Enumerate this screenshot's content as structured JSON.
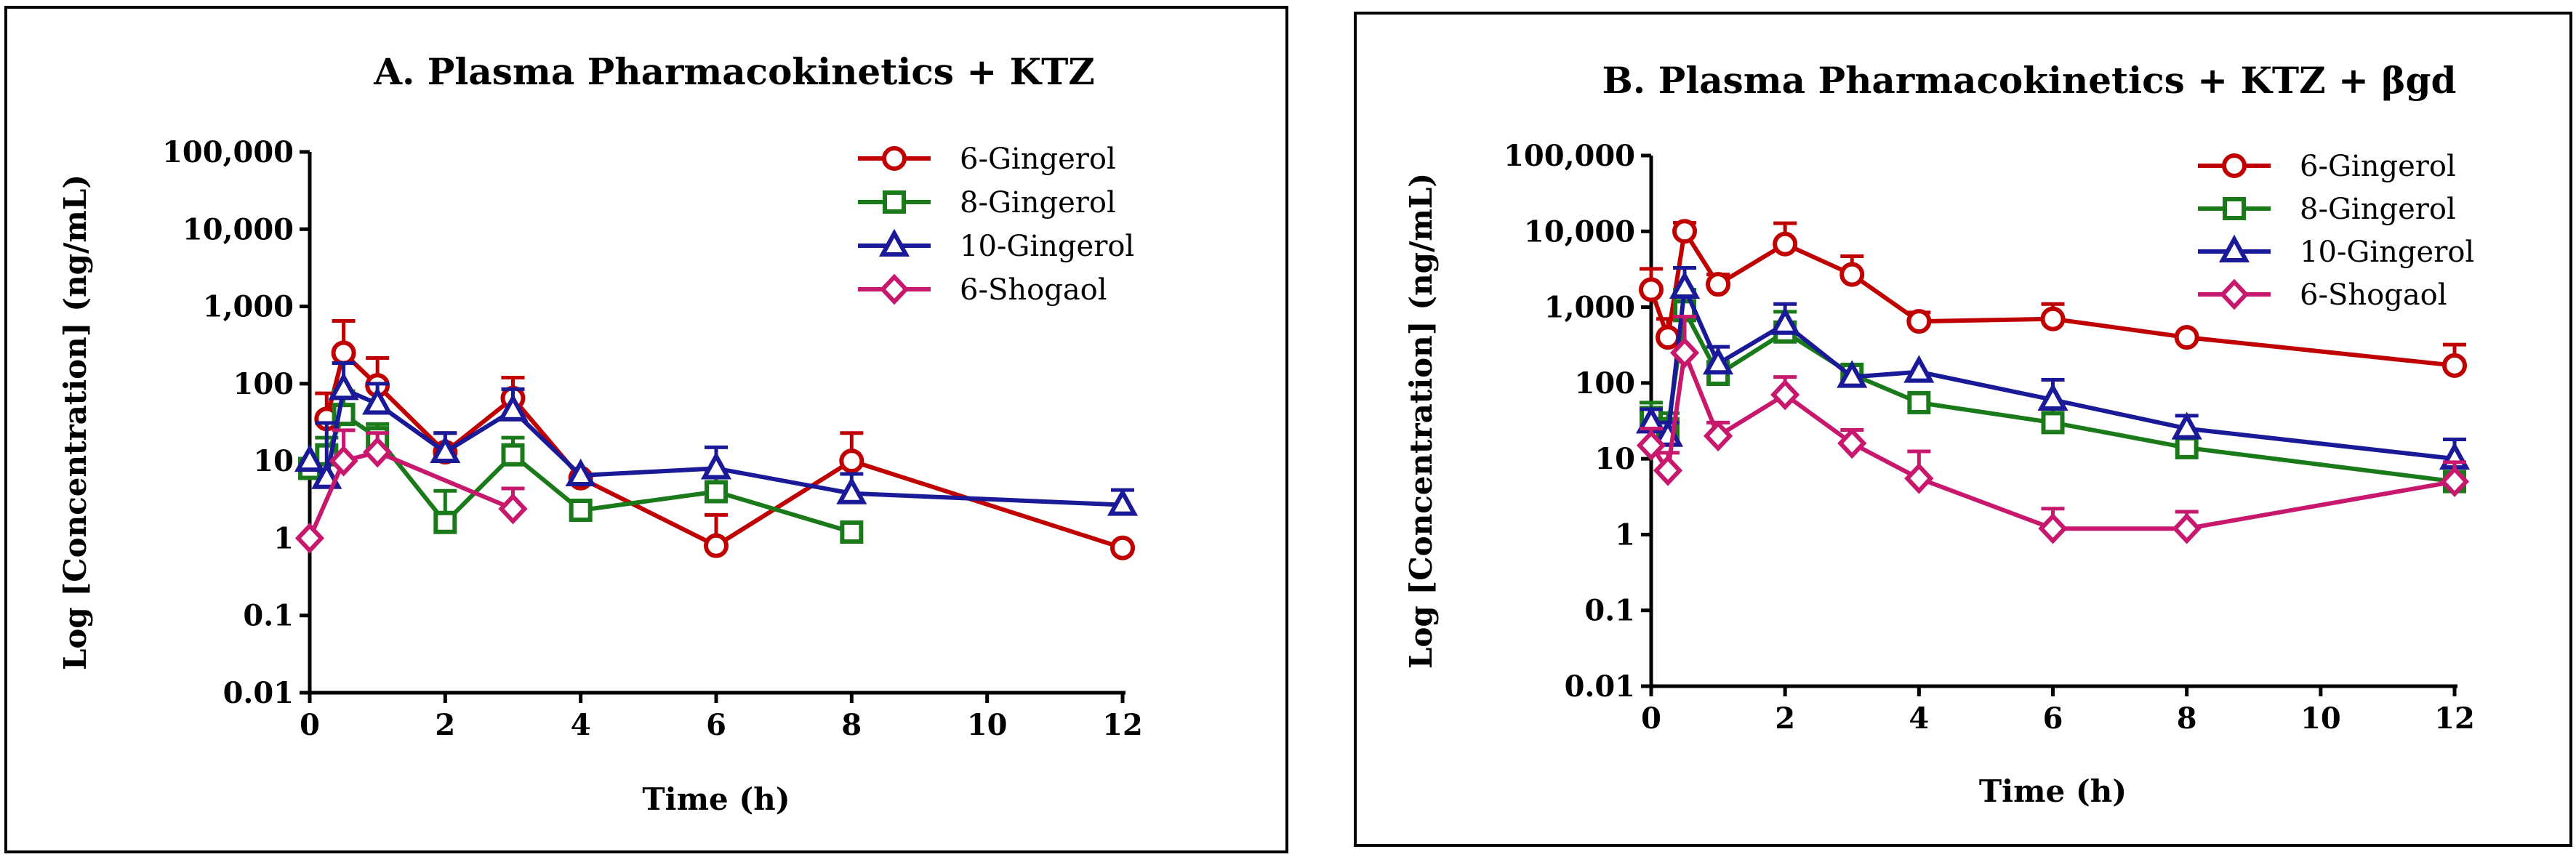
{
  "chart_data": [
    {
      "type": "line",
      "title": "A. Plasma Pharmacokinetics + KTZ",
      "xlabel": "Time (h)",
      "ylabel": "Log [Concentration] (ng/mL)",
      "yscale": "log",
      "xlim": [
        0,
        12
      ],
      "ylim": [
        0.01,
        100000
      ],
      "xticks": [
        0,
        2,
        4,
        6,
        8,
        10,
        12
      ],
      "yticks": [
        0.01,
        0.1,
        1,
        10,
        100,
        1000,
        10000,
        100000
      ],
      "ytick_labels": [
        "0.01",
        "0.1",
        "1",
        "10",
        "100",
        "1,000",
        "10,000",
        "100,000"
      ],
      "legend_position": "top-right",
      "series": [
        {
          "name": "6-Gingerol",
          "color": "#c00000",
          "marker": "circle",
          "x": [
            0.25,
            0.5,
            1,
            2,
            3,
            4,
            6,
            8,
            12
          ],
          "y": [
            35,
            250,
            95,
            13,
            65,
            6,
            0.8,
            10,
            0.75
          ],
          "err": [
            40,
            400,
            120,
            10,
            55,
            0,
            1.2,
            13,
            0
          ]
        },
        {
          "name": "8-Gingerol",
          "color": "#1a7a1a",
          "marker": "square",
          "x": [
            0,
            0.25,
            0.5,
            1,
            2,
            3,
            4,
            6,
            8
          ],
          "y": [
            8,
            12,
            40,
            20,
            1.6,
            12,
            2.3,
            4,
            1.2
          ],
          "err": [
            0,
            8,
            40,
            10,
            2.5,
            8,
            0,
            3,
            0
          ]
        },
        {
          "name": "10-Gingerol",
          "color": "#1a1a99",
          "marker": "triangle",
          "x": [
            0,
            0.25,
            0.5,
            1,
            2,
            3,
            4,
            6,
            8,
            12
          ],
          "y": [
            10,
            6,
            85,
            55,
            13,
            45,
            6.5,
            8,
            3.8,
            2.7
          ],
          "err": [
            0,
            25,
            100,
            45,
            10,
            40,
            0,
            7,
            3,
            1.5
          ]
        },
        {
          "name": "6-Shogaol",
          "color": "#c8186e",
          "marker": "diamond",
          "x": [
            0,
            0.5,
            1,
            3
          ],
          "y": [
            1,
            10,
            13,
            2.4
          ],
          "err": [
            0,
            15,
            10,
            2
          ]
        }
      ]
    },
    {
      "type": "line",
      "title": "B. Plasma Pharmacokinetics + KTZ + βgd",
      "xlabel": "Time (h)",
      "ylabel": "Log [Concentration] (ng/mL)",
      "yscale": "log",
      "xlim": [
        0,
        12
      ],
      "ylim": [
        0.01,
        100000
      ],
      "xticks": [
        0,
        2,
        4,
        6,
        8,
        10,
        12
      ],
      "yticks": [
        0.01,
        0.1,
        1,
        10,
        100,
        1000,
        10000,
        100000
      ],
      "ytick_labels": [
        "0.01",
        "0.1",
        "1",
        "10",
        "100",
        "1,000",
        "10,000",
        "100,000"
      ],
      "legend_position": "top-right",
      "series": [
        {
          "name": "6-Gingerol",
          "color": "#c00000",
          "marker": "circle",
          "x": [
            0,
            0.25,
            0.5,
            1,
            2,
            3,
            4,
            6,
            8,
            12
          ],
          "y": [
            1700,
            400,
            10000,
            2000,
            6800,
            2700,
            650,
            700,
            400,
            170
          ],
          "err": [
            1500,
            300,
            3000,
            700,
            6000,
            2000,
            200,
            400,
            0,
            150
          ]
        },
        {
          "name": "8-Gingerol",
          "color": "#1a7a1a",
          "marker": "square",
          "x": [
            0,
            0.25,
            0.5,
            1,
            2,
            3,
            4,
            6,
            8,
            12
          ],
          "y": [
            35,
            25,
            900,
            130,
            470,
            130,
            55,
            30,
            14,
            5
          ],
          "err": [
            20,
            15,
            800,
            60,
            400,
            0,
            0,
            20,
            0,
            0
          ]
        },
        {
          "name": "10-Gingerol",
          "color": "#1a1a99",
          "marker": "triangle",
          "x": [
            0,
            0.25,
            0.5,
            1,
            2,
            3,
            4,
            6,
            8,
            12
          ],
          "y": [
            30,
            20,
            1800,
            180,
            600,
            120,
            140,
            60,
            25,
            10
          ],
          "err": [
            15,
            10,
            1500,
            120,
            500,
            0,
            0,
            50,
            12,
            8
          ]
        },
        {
          "name": "6-Shogaol",
          "color": "#c8186e",
          "marker": "diamond",
          "x": [
            0,
            0.25,
            0.5,
            1,
            2,
            3,
            4,
            6,
            8,
            12
          ],
          "y": [
            15,
            7,
            250,
            20,
            70,
            16,
            5.5,
            1.2,
            1.2,
            5
          ],
          "err": [
            10,
            5,
            500,
            10,
            50,
            8,
            7,
            1,
            0.8,
            4
          ]
        }
      ]
    }
  ]
}
